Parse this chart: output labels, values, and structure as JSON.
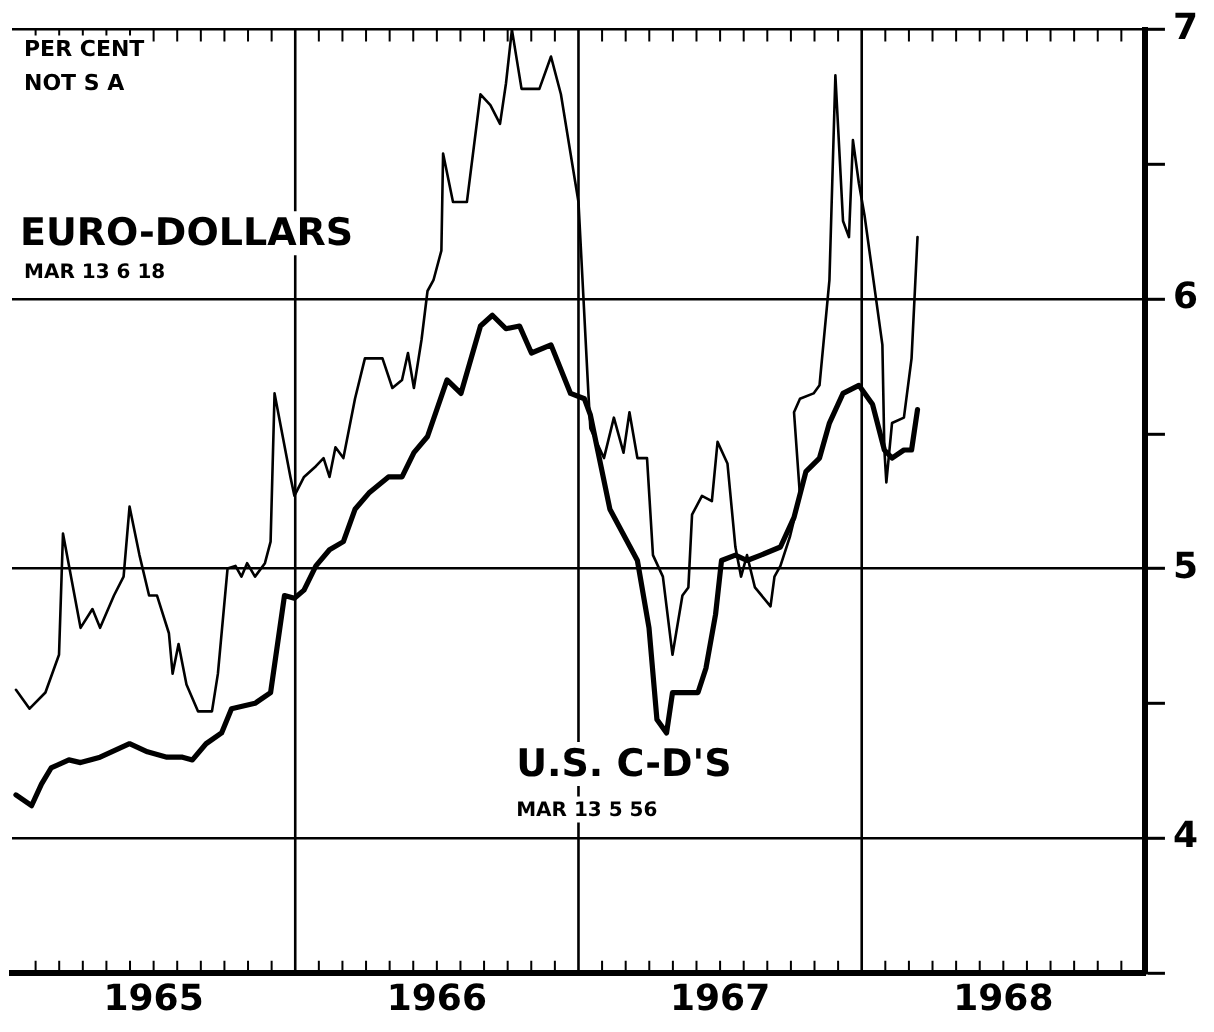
{
  "chart_data": {
    "type": "line",
    "annotations": [
      "PER CENT",
      "NOT S A",
      "MAR 13 6 18",
      "MAR 13 5 56"
    ],
    "xlim": [
      1965,
      1969
    ],
    "xticks": [
      {
        "value": 1965.5,
        "label": "1965"
      },
      {
        "value": 1966.5,
        "label": "1966"
      },
      {
        "value": 1967.5,
        "label": "1967"
      },
      {
        "value": 1968.5,
        "label": "1968"
      }
    ],
    "ylim": [
      3.5,
      7
    ],
    "yticks": [
      {
        "value": 3.5,
        "label": null
      },
      4,
      {
        "value": 4.5,
        "label": null
      },
      5,
      {
        "value": 5.5,
        "label": null
      },
      6,
      {
        "value": 6.5,
        "label": null
      },
      7
    ],
    "grid": "y",
    "legend": false,
    "marker": "none",
    "line_style": "solid",
    "ref_lines": [
      {
        "axis": "x",
        "value": 1966,
        "color": "#000000"
      },
      {
        "axis": "x",
        "value": 1967,
        "color": "#000000"
      },
      {
        "axis": "x",
        "value": 1968,
        "color": "#000000"
      }
    ],
    "series": [
      {
        "name": "EURO-DOLLARS",
        "color": "#000000",
        "x": [
          1965.014,
          1965.062,
          1965.118,
          1965.166,
          1965.18,
          1965.242,
          1965.284,
          1965.311,
          1965.36,
          1965.394,
          1965.415,
          1965.45,
          1965.484,
          1965.512,
          1965.554,
          1965.567,
          1965.588,
          1965.616,
          1965.657,
          1965.706,
          1965.727,
          1965.761,
          1965.789,
          1965.81,
          1965.83,
          1965.858,
          1965.893,
          1965.913,
          1965.927,
          1965.983,
          1965.997,
          1966.031,
          1966.073,
          1966.1,
          1966.121,
          1966.142,
          1966.17,
          1966.211,
          1966.246,
          1966.308,
          1966.343,
          1966.377,
          1966.398,
          1966.419,
          1966.446,
          1966.467,
          1966.488,
          1966.516,
          1966.522,
          1966.557,
          1966.606,
          1966.654,
          1966.689,
          1966.723,
          1966.744,
          1966.765,
          1966.799,
          1966.862,
          1966.903,
          1966.938,
          1966.972,
          1967.0,
          1967.035,
          1967.042,
          1967.09,
          1967.125,
          1967.159,
          1967.18,
          1967.208,
          1967.242,
          1967.263,
          1967.298,
          1967.332,
          1967.367,
          1967.388,
          1967.401,
          1967.436,
          1967.471,
          1967.491,
          1967.526,
          1967.554,
          1967.574,
          1967.595,
          1967.623,
          1967.678,
          1967.692,
          1967.713,
          1967.747,
          1967.782,
          1967.761,
          1967.782,
          1967.83,
          1967.851,
          1967.886,
          1967.907,
          1967.934,
          1967.955,
          1967.969,
          1967.99,
          1968.01,
          1968.073,
          1968.08,
          1968.087,
          1968.107,
          1968.149,
          1968.176,
          1968.197
        ],
        "values": [
          4.55,
          4.48,
          4.54,
          4.68,
          5.13,
          4.78,
          4.85,
          4.78,
          4.9,
          4.97,
          5.23,
          5.05,
          4.9,
          4.9,
          4.76,
          4.61,
          4.72,
          4.57,
          4.47,
          4.47,
          4.61,
          5.0,
          5.01,
          4.97,
          5.02,
          4.97,
          5.02,
          5.1,
          5.65,
          5.34,
          5.27,
          5.34,
          5.38,
          5.41,
          5.34,
          5.45,
          5.41,
          5.63,
          5.78,
          5.78,
          5.67,
          5.7,
          5.8,
          5.67,
          5.85,
          6.03,
          6.07,
          6.18,
          6.54,
          6.36,
          6.36,
          6.76,
          6.72,
          6.65,
          6.8,
          7.0,
          6.78,
          6.78,
          6.9,
          6.76,
          6.54,
          6.36,
          5.65,
          5.52,
          5.41,
          5.56,
          5.43,
          5.58,
          5.41,
          5.41,
          5.05,
          4.97,
          4.68,
          4.9,
          4.93,
          5.2,
          5.27,
          5.25,
          5.47,
          5.39,
          5.08,
          4.97,
          5.05,
          4.93,
          4.86,
          4.97,
          5.01,
          5.12,
          5.27,
          5.58,
          5.63,
          5.65,
          5.68,
          6.07,
          6.83,
          6.29,
          6.23,
          6.59,
          6.43,
          6.31,
          5.83,
          5.44,
          5.32,
          5.54,
          5.56,
          5.78,
          6.23
        ]
      },
      {
        "name": "U.S. C-D'S",
        "color": "#000000",
        "x": [
          1965.014,
          1965.069,
          1965.104,
          1965.138,
          1965.201,
          1965.242,
          1965.311,
          1965.415,
          1965.478,
          1965.547,
          1965.602,
          1965.637,
          1965.685,
          1965.74,
          1965.775,
          1965.858,
          1965.913,
          1965.962,
          1965.997,
          1966.031,
          1966.073,
          1966.121,
          1966.17,
          1966.211,
          1966.26,
          1966.329,
          1966.377,
          1966.419,
          1966.467,
          1966.536,
          1966.585,
          1966.654,
          1966.696,
          1966.744,
          1966.792,
          1966.834,
          1966.903,
          1966.972,
          1967.021,
          1967.042,
          1967.111,
          1967.208,
          1967.249,
          1967.277,
          1967.311,
          1967.332,
          1967.422,
          1967.45,
          1967.484,
          1967.505,
          1967.554,
          1967.595,
          1967.644,
          1967.713,
          1967.761,
          1967.803,
          1967.851,
          1967.886,
          1967.934,
          1967.99,
          1968.038,
          1968.08,
          1968.107,
          1968.149,
          1968.176,
          1968.197
        ],
        "values": [
          4.16,
          4.12,
          4.2,
          4.26,
          4.29,
          4.28,
          4.3,
          4.35,
          4.32,
          4.3,
          4.3,
          4.29,
          4.35,
          4.39,
          4.48,
          4.5,
          4.54,
          4.9,
          4.89,
          4.92,
          5.01,
          5.07,
          5.1,
          5.22,
          5.28,
          5.34,
          5.34,
          5.43,
          5.49,
          5.7,
          5.65,
          5.9,
          5.94,
          5.89,
          5.9,
          5.8,
          5.83,
          5.65,
          5.63,
          5.57,
          5.22,
          5.03,
          4.78,
          4.44,
          4.39,
          4.54,
          4.54,
          4.63,
          4.83,
          5.03,
          5.05,
          5.03,
          5.05,
          5.08,
          5.19,
          5.36,
          5.41,
          5.54,
          5.65,
          5.68,
          5.61,
          5.44,
          5.41,
          5.44,
          5.44,
          5.59
        ]
      }
    ]
  }
}
